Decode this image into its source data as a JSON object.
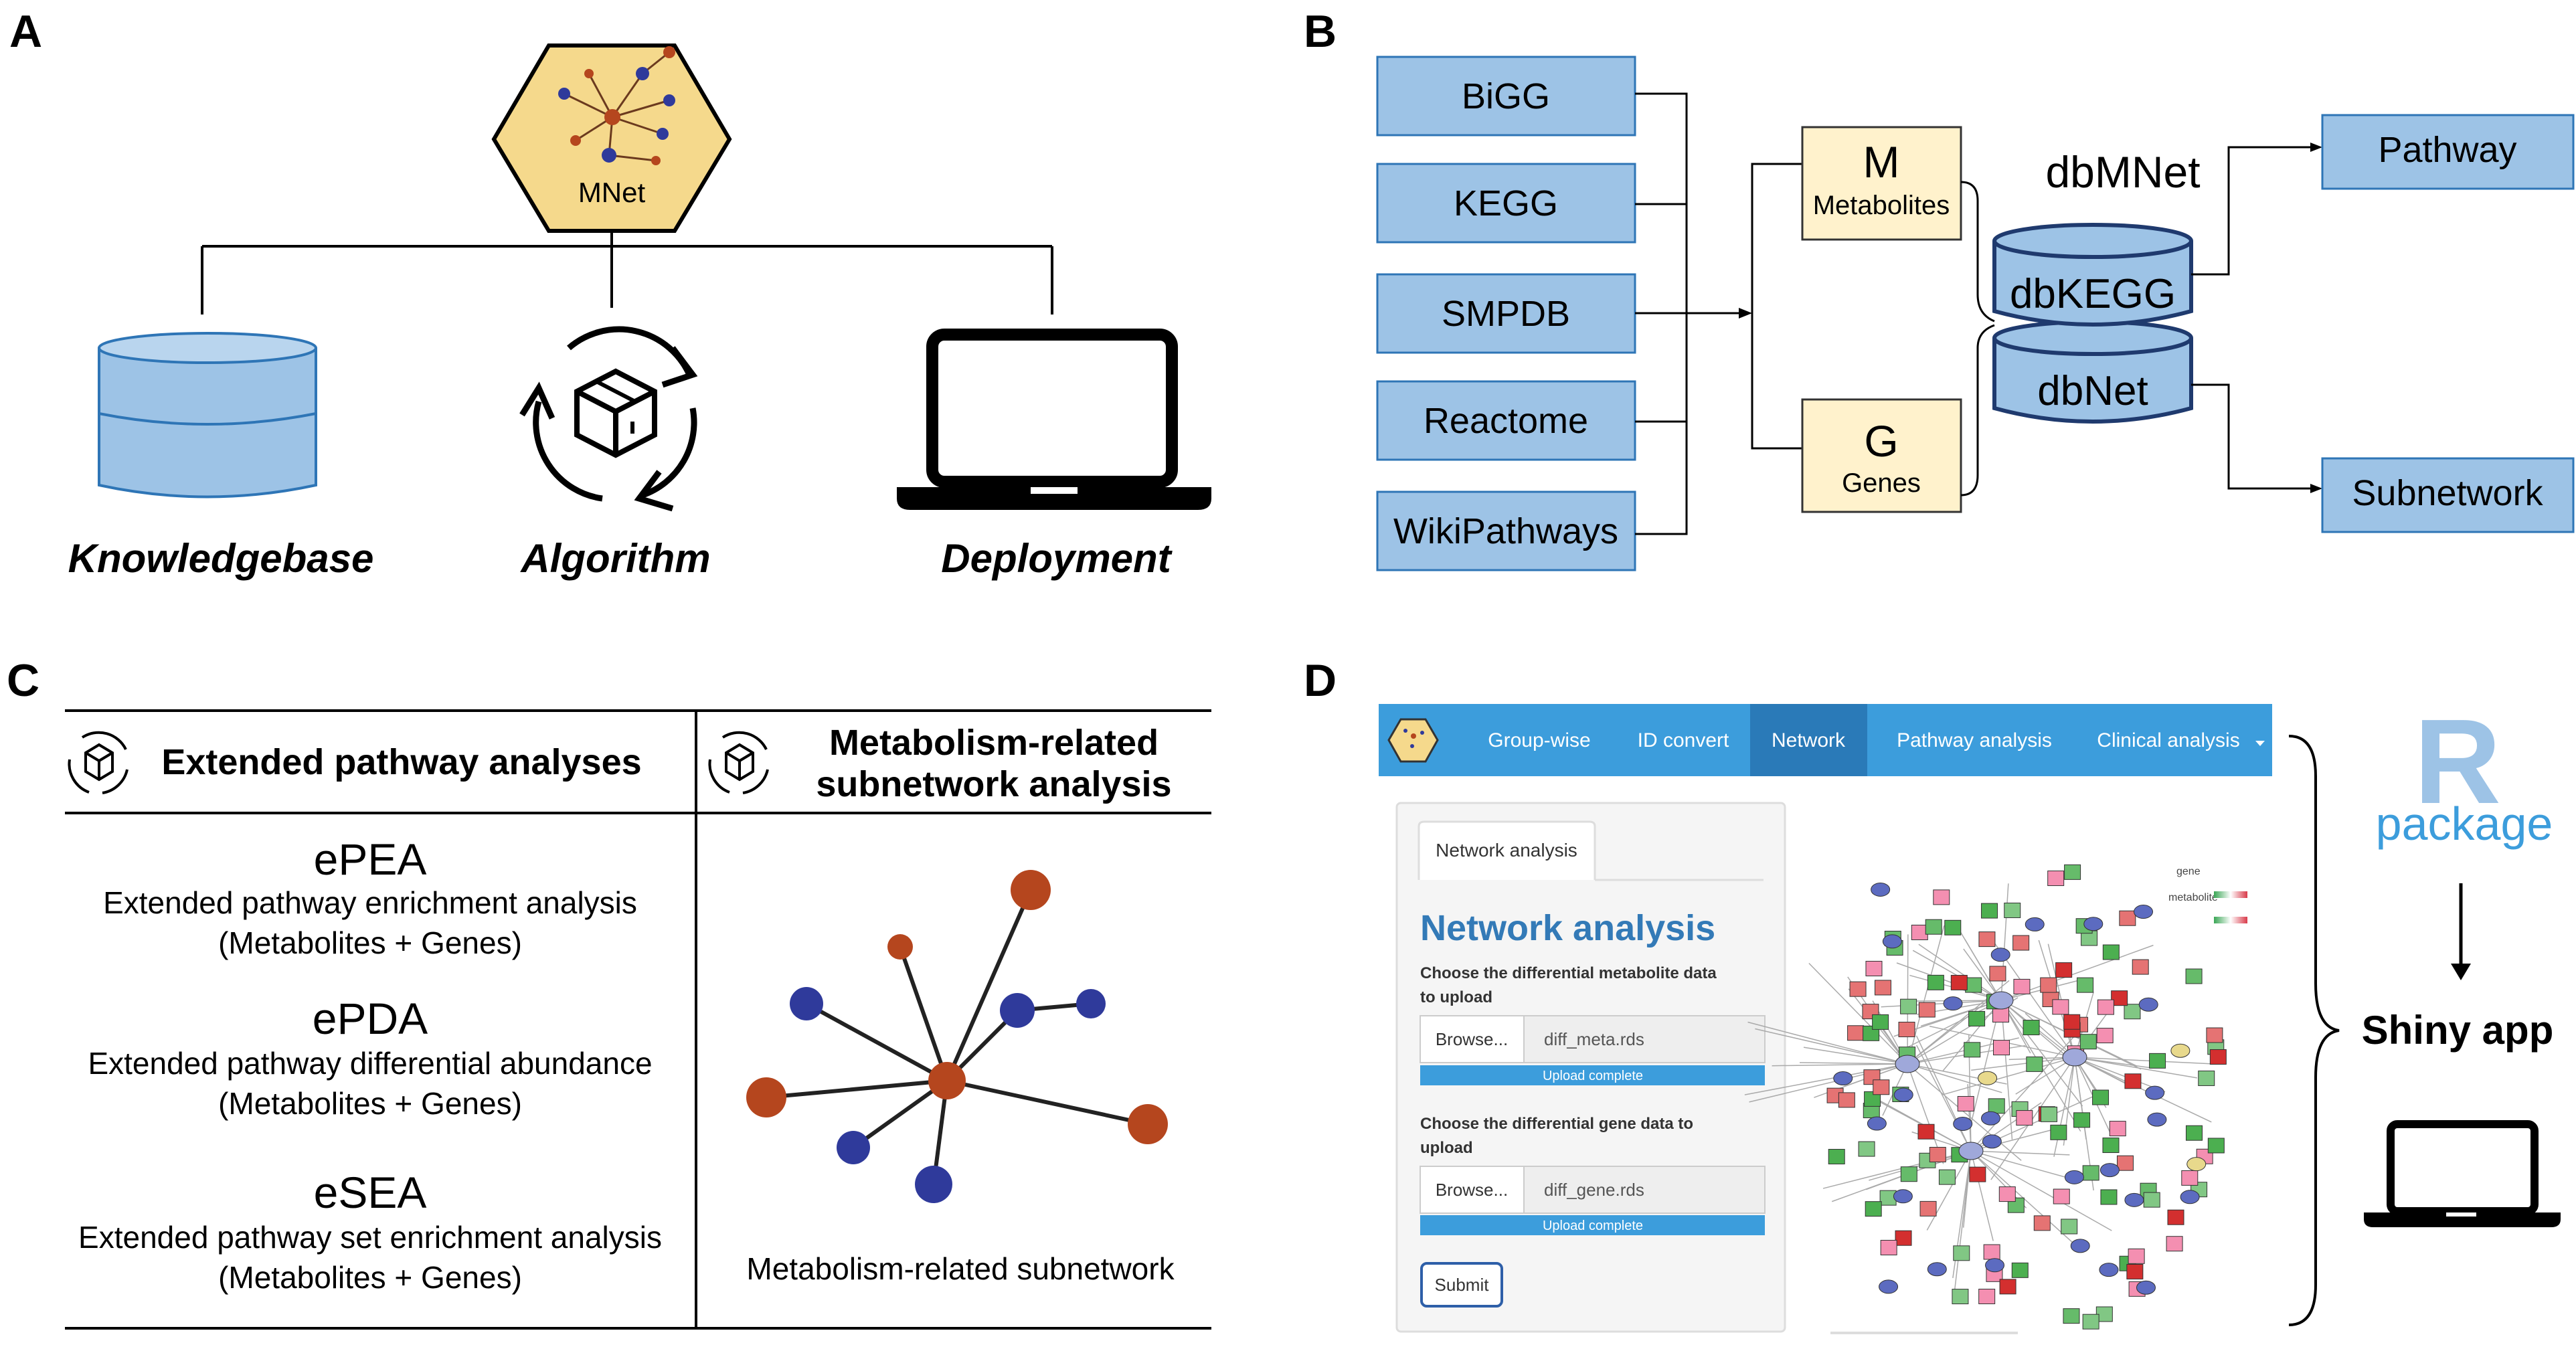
{
  "panels": {
    "a": "A",
    "b": "B",
    "c": "C",
    "d": "D"
  },
  "panel_a": {
    "hex_label": "MNet",
    "items": [
      "Knowledgebase",
      "Algorithm",
      "Deployment"
    ]
  },
  "panel_b": {
    "sources": [
      "BiGG",
      "KEGG",
      "SMPDB",
      "Reactome",
      "WikiPathways"
    ],
    "metabolites": {
      "letter": "M",
      "label": "Metabolites"
    },
    "genes": {
      "letter": "G",
      "label": "Genes"
    },
    "db_title": "dbMNet",
    "db_top": "dbKEGG",
    "db_bottom": "dbNet",
    "outputs": [
      "Pathway",
      "Subnetwork"
    ]
  },
  "panel_c": {
    "col1_header": "Extended pathway analyses",
    "col2_header_line1": "Metabolism-related",
    "col2_header_line2": "subnetwork analysis",
    "analyses": [
      {
        "name": "ePEA",
        "desc": "Extended pathway enrichment analysis",
        "sub": "(Metabolites + Genes)"
      },
      {
        "name": "ePDA",
        "desc": "Extended pathway differential abundance",
        "sub": "(Metabolites + Genes)"
      },
      {
        "name": "eSEA",
        "desc": "Extended pathway set enrichment analysis",
        "sub": "(Metabolites + Genes)"
      }
    ],
    "subnetwork_caption": "Metabolism-related subnetwork"
  },
  "panel_d": {
    "nav": [
      "Group-wise",
      "ID convert",
      "Network",
      "Pathway analysis",
      "Clinical analysis"
    ],
    "active_nav": "Network",
    "tab": "Network analysis",
    "heading": "Network analysis",
    "meta_label_1": "Choose the differential metabolite data",
    "meta_label_2": "to upload",
    "gene_label_1": "Choose the differential gene data to",
    "gene_label_2": "upload",
    "browse": "Browse...",
    "meta_file": "diff_meta.rds",
    "gene_file": "diff_gene.rds",
    "upload_status": "Upload complete",
    "submit": "Submit",
    "legend_gene": "gene",
    "legend_metabolite": "metabolite",
    "r_letter": "R",
    "r_package": "package",
    "shiny": "Shiny app"
  },
  "colors": {
    "blue_box": "#9dc3e6",
    "yellow_box": "#fff2cc",
    "navbar": "#3c9ddc",
    "node_brown": "#b5461e",
    "node_navy": "#2f3a9b",
    "progress": "#3c9ddc"
  }
}
